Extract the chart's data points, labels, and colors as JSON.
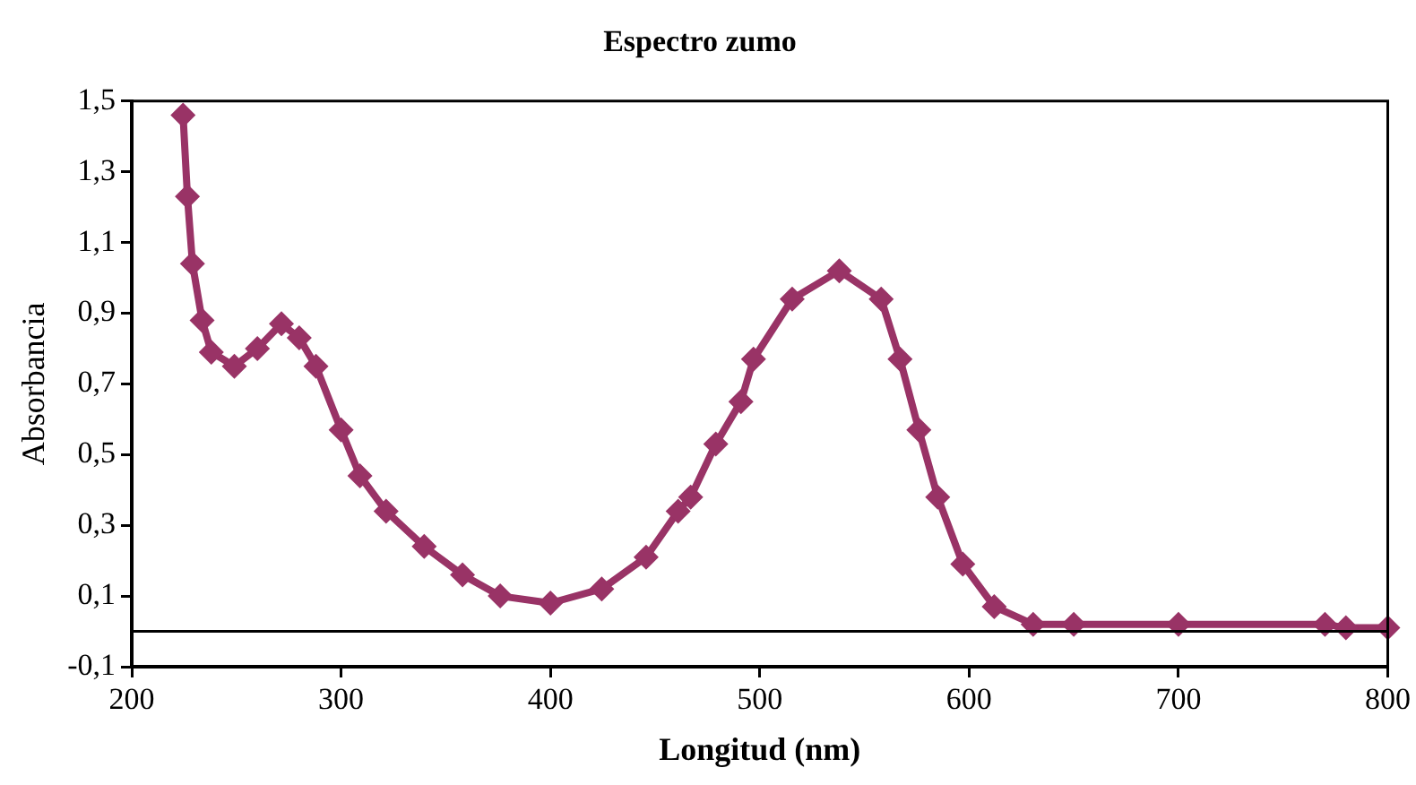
{
  "chart_data": {
    "type": "line",
    "title": "Espectro zumo",
    "xlabel": "Longitud (nm)",
    "ylabel": "Absorbancia",
    "x": [
      224.5,
      226.6,
      229,
      233.6,
      238,
      249,
      260,
      271.5,
      280,
      288,
      300,
      309,
      321.5,
      339.7,
      358,
      376,
      400,
      424.5,
      445.7,
      461,
      467,
      479,
      491,
      497,
      515.5,
      538,
      558,
      567,
      576,
      585,
      597,
      612,
      630.6,
      650,
      700,
      770,
      780,
      800
    ],
    "series": [
      {
        "color": "#993366",
        "values": [
          1.46,
          1.23,
          1.04,
          0.88,
          0.79,
          0.75,
          0.8,
          0.87,
          0.83,
          0.75,
          0.57,
          0.44,
          0.34,
          0.24,
          0.16,
          0.1,
          0.08,
          0.12,
          0.21,
          0.34,
          0.38,
          0.53,
          0.65,
          0.77,
          0.94,
          1.02,
          0.94,
          0.77,
          0.57,
          0.38,
          0.19,
          0.07,
          0.02,
          0.02,
          0.02,
          0.02,
          0.01,
          0.01
        ]
      }
    ],
    "xlim": [
      200,
      800
    ],
    "xticks": [
      200,
      300,
      400,
      500,
      600,
      700,
      800
    ],
    "ylim": [
      -0.1,
      1.5
    ],
    "yticks": [
      {
        "value": -0.1,
        "label": "-0,1"
      },
      {
        "value": 0.1,
        "label": "0,1"
      },
      {
        "value": 0.3,
        "label": "0,3"
      },
      {
        "value": 0.5,
        "label": "0,5"
      },
      {
        "value": 0.7,
        "label": "0,7"
      },
      {
        "value": 0.9,
        "label": "0,9"
      },
      {
        "value": 1.1,
        "label": "1,1"
      },
      {
        "value": 1.3,
        "label": "1,3"
      },
      {
        "value": 1.5,
        "label": "1,5"
      }
    ],
    "ref_lines": [
      {
        "axis": "y",
        "value": 0,
        "color": "#000000"
      }
    ],
    "grid": false,
    "legend": false,
    "marker": "diamond",
    "line_style": "solid"
  }
}
